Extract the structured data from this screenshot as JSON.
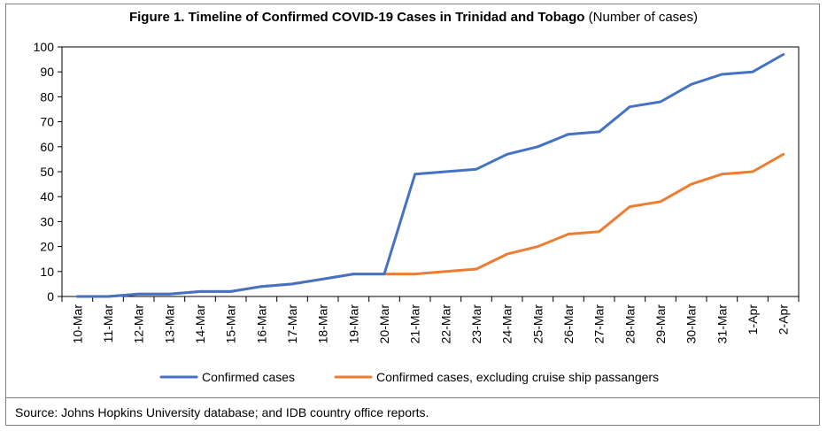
{
  "title_bold": "Figure 1. Timeline of Confirmed COVID-19 Cases in Trinidad and Tobago",
  "title_normal": " (Number of cases)",
  "source": "Source: Johns Hopkins University database; and IDB country office reports.",
  "chart_data": {
    "type": "line",
    "title": "Figure 1. Timeline of Confirmed COVID-19 Cases in Trinidad and Tobago (Number of cases)",
    "xlabel": "",
    "ylabel": "",
    "ylim": [
      0,
      100
    ],
    "yticks": [
      0,
      10,
      20,
      30,
      40,
      50,
      60,
      70,
      80,
      90,
      100
    ],
    "grid": false,
    "legend_position": "bottom",
    "categories": [
      "10-Mar",
      "11-Mar",
      "12-Mar",
      "13-Mar",
      "14-Mar",
      "15-Mar",
      "16-Mar",
      "17-Mar",
      "18-Mar",
      "19-Mar",
      "20-Mar",
      "21-Mar",
      "22-Mar",
      "23-Mar",
      "24-Mar",
      "25-Mar",
      "26-Mar",
      "27-Mar",
      "28-Mar",
      "29-Mar",
      "30-Mar",
      "31-Mar",
      "1-Apr",
      "2-Apr"
    ],
    "series": [
      {
        "name": "Confirmed cases",
        "color": "#4472C4",
        "values": [
          0,
          0,
          1,
          1,
          2,
          2,
          4,
          5,
          7,
          9,
          9,
          49,
          50,
          51,
          57,
          60,
          65,
          66,
          76,
          78,
          85,
          89,
          90,
          97
        ]
      },
      {
        "name": "Confirmed cases, excluding cruise ship passangers",
        "color": "#ED7D31",
        "values": [
          0,
          0,
          1,
          1,
          2,
          2,
          4,
          5,
          7,
          9,
          9,
          9,
          10,
          11,
          17,
          20,
          25,
          26,
          36,
          38,
          45,
          49,
          50,
          57
        ]
      }
    ]
  }
}
